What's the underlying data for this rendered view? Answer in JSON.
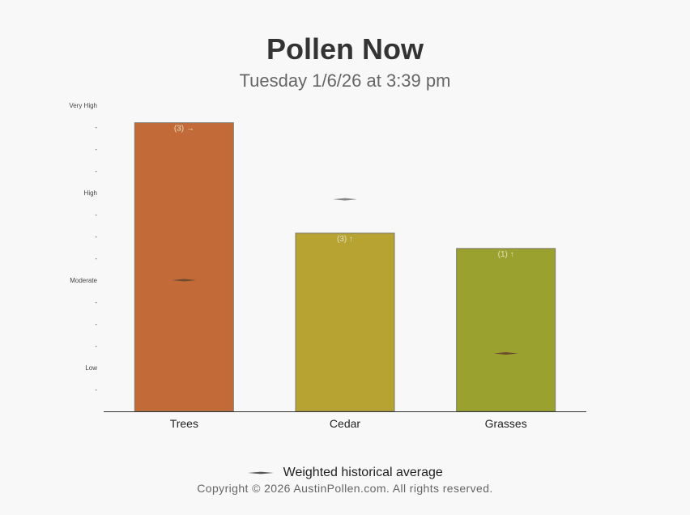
{
  "title": "Pollen Now",
  "subtitle": "Tuesday 1/6/26 at 3:39 pm",
  "legend": {
    "label": "Weighted historical average"
  },
  "copyright": "Copyright © 2026 AustinPollen.com.  All rights reserved.",
  "chart_data": {
    "type": "bar",
    "categories": [
      "Trees",
      "Cedar",
      "Grasses"
    ],
    "values": [
      13.2,
      8.15,
      7.45
    ],
    "bar_labels": [
      "(3) →",
      "(3) ↑",
      "(1) ↑"
    ],
    "historical_average": [
      6.0,
      9.7,
      2.65
    ],
    "colors": [
      "#c26b38",
      "#b6a331",
      "#9ba12f"
    ],
    "ylim": [
      0,
      14
    ],
    "y_ticks": [
      {
        "value": 1,
        "label": "-"
      },
      {
        "value": 2,
        "label": "Low"
      },
      {
        "value": 3,
        "label": "-"
      },
      {
        "value": 4,
        "label": "-"
      },
      {
        "value": 5,
        "label": "-"
      },
      {
        "value": 6,
        "label": "Moderate"
      },
      {
        "value": 7,
        "label": "-"
      },
      {
        "value": 8,
        "label": "-"
      },
      {
        "value": 9,
        "label": "-"
      },
      {
        "value": 10,
        "label": "High"
      },
      {
        "value": 11,
        "label": "-"
      },
      {
        "value": 12,
        "label": "-"
      },
      {
        "value": 13,
        "label": "-"
      },
      {
        "value": 14,
        "label": "Very High"
      }
    ],
    "legend_position": "bottom",
    "grid": false
  }
}
